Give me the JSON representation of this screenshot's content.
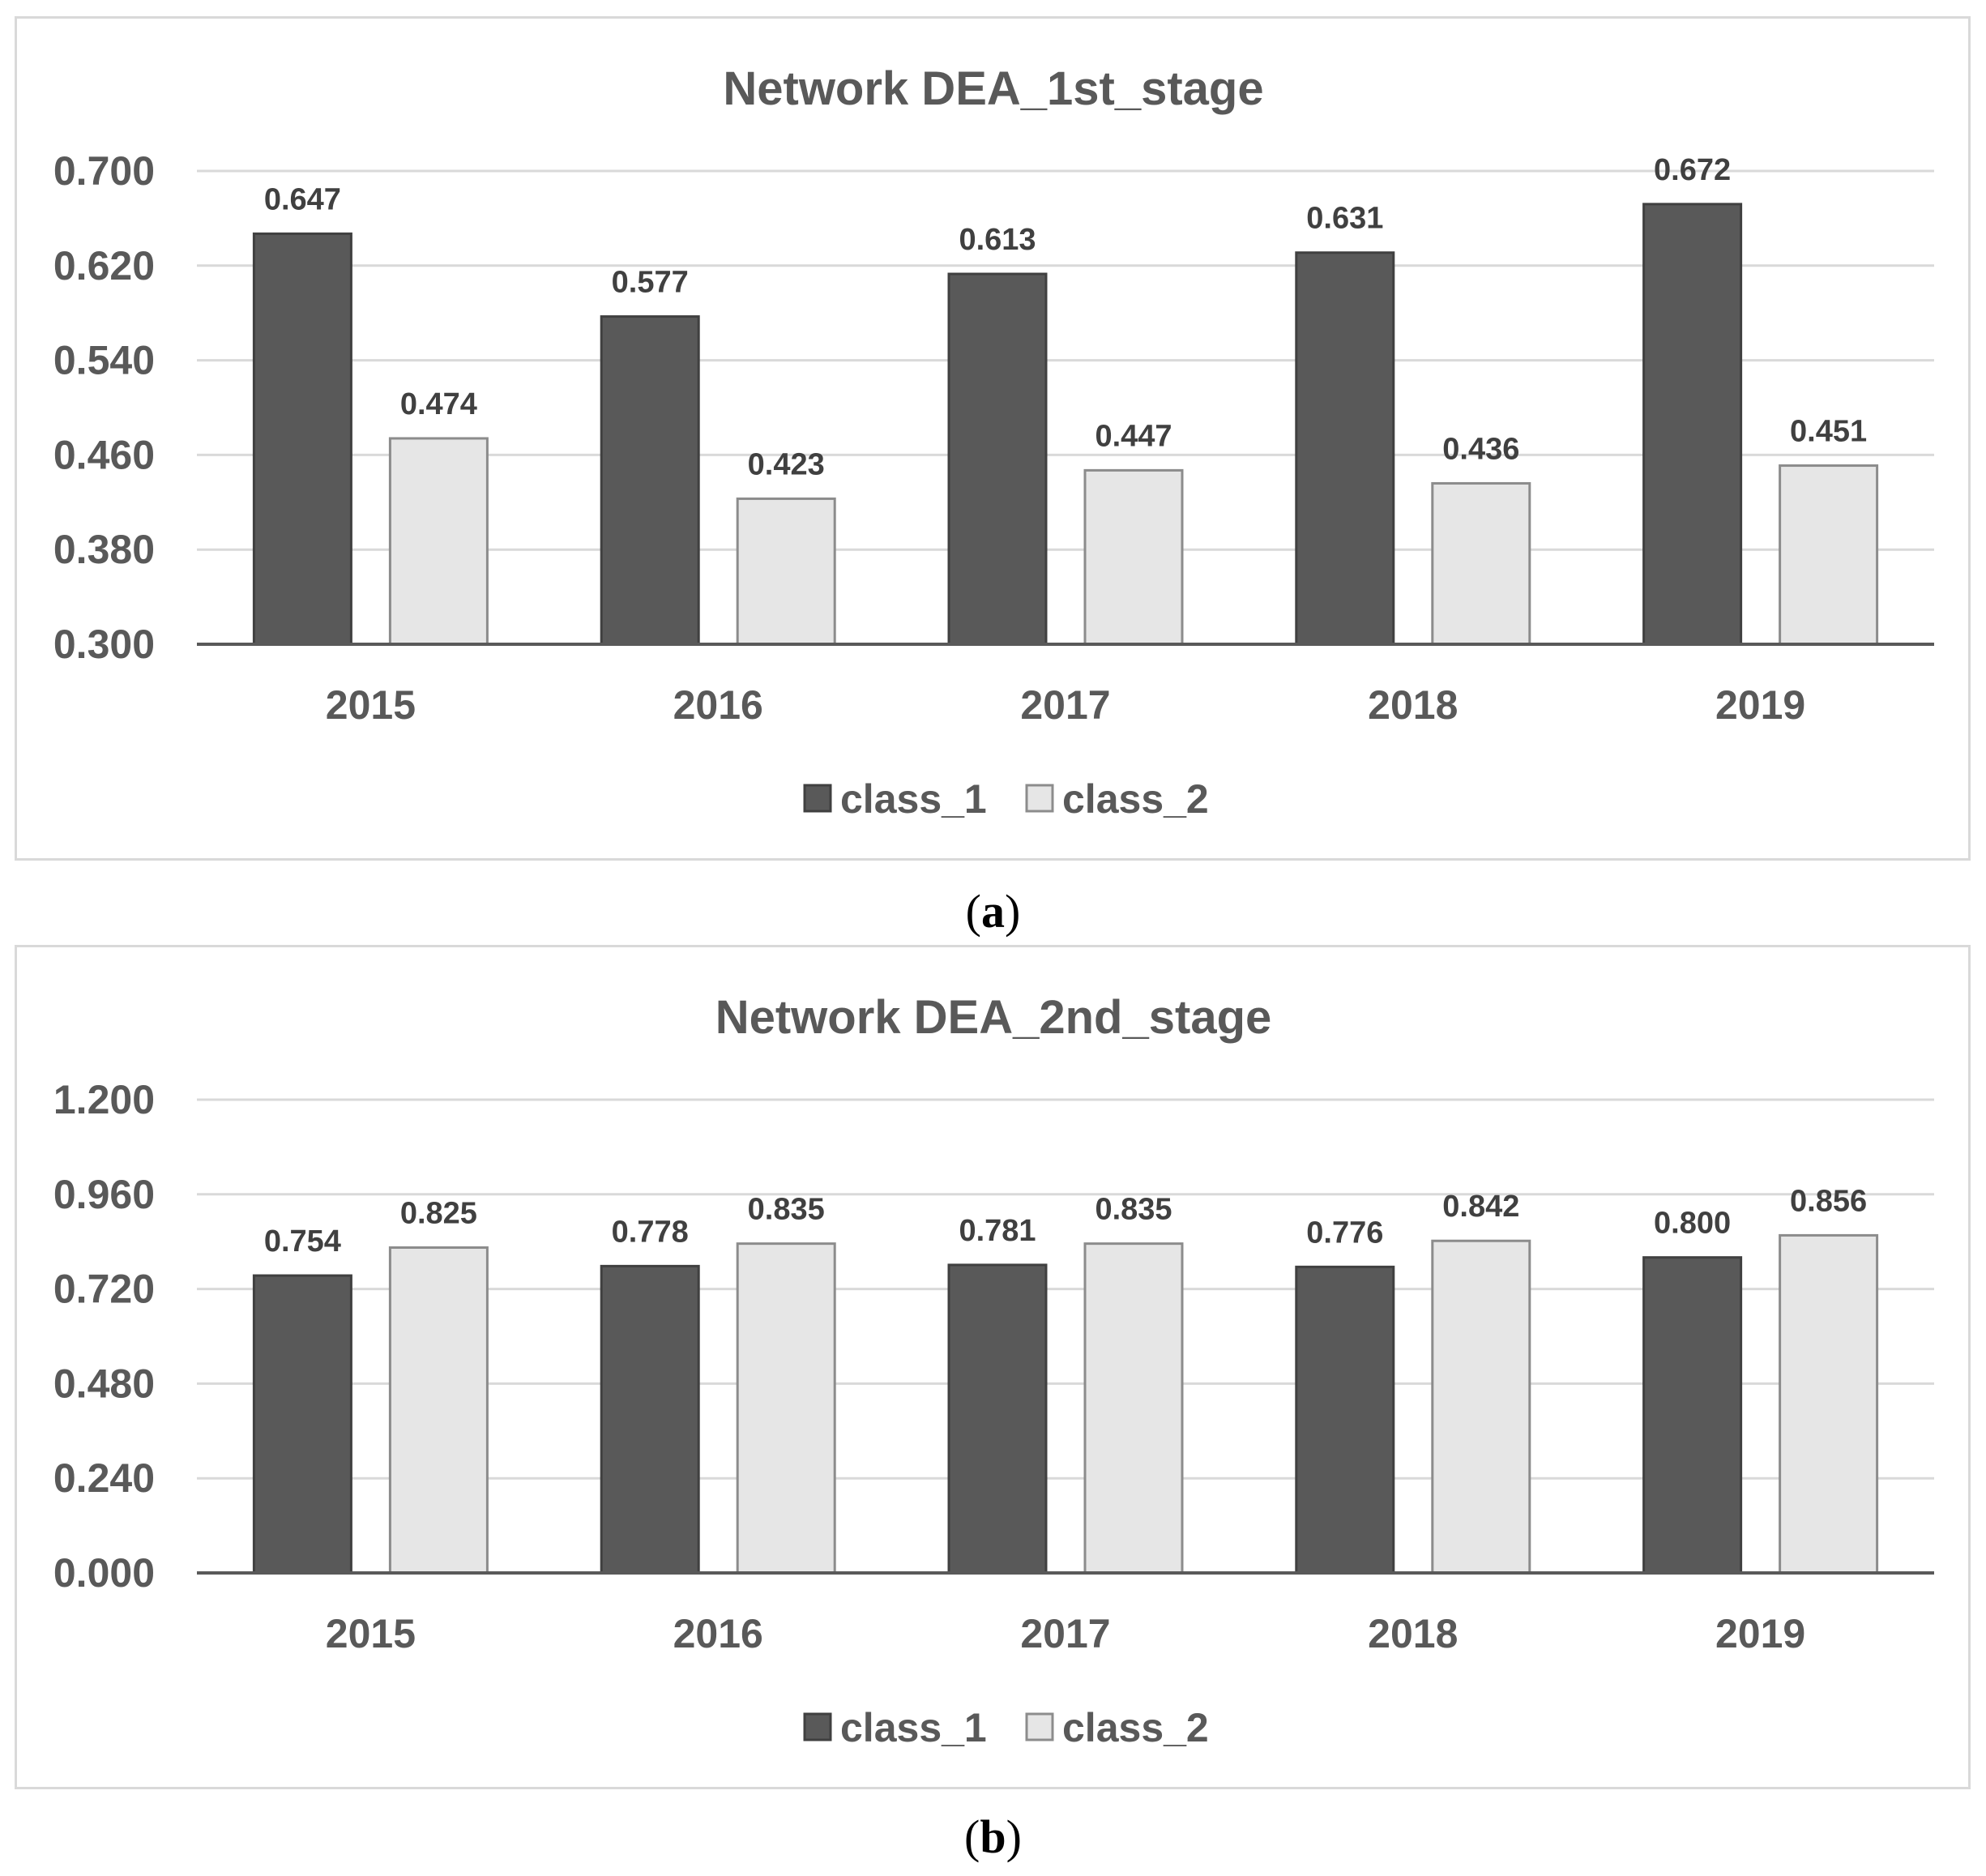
{
  "chart_data": [
    {
      "type": "bar",
      "title": "Network DEA_1st_stage",
      "categories": [
        "2015",
        "2016",
        "2017",
        "2018",
        "2019"
      ],
      "series": [
        {
          "name": "class_1",
          "values": [
            0.647,
            0.577,
            0.613,
            0.631,
            0.672
          ],
          "labels": [
            "0.647",
            "0.577",
            "0.613",
            "0.631",
            "0.672"
          ]
        },
        {
          "name": "class_2",
          "values": [
            0.474,
            0.423,
            0.447,
            0.436,
            0.451
          ],
          "labels": [
            "0.474",
            "0.423",
            "0.447",
            "0.436",
            "0.451"
          ]
        }
      ],
      "ylim": [
        0.3,
        0.7
      ],
      "yticks": [
        "0.300",
        "0.380",
        "0.460",
        "0.540",
        "0.620",
        "0.700"
      ],
      "ytick_values": [
        0.3,
        0.38,
        0.46,
        0.54,
        0.62,
        0.7
      ],
      "xlabel": "",
      "ylabel": "",
      "grid": true,
      "legend_position": "bottom-center",
      "colors": {
        "class_1": "#595959",
        "class_2": "#e6e6e6"
      }
    },
    {
      "type": "bar",
      "title": "Network DEA_2nd_stage",
      "categories": [
        "2015",
        "2016",
        "2017",
        "2018",
        "2019"
      ],
      "series": [
        {
          "name": "class_1",
          "values": [
            0.754,
            0.778,
            0.781,
            0.776,
            0.8
          ],
          "labels": [
            "0.754",
            "0.778",
            "0.781",
            "0.776",
            "0.800"
          ]
        },
        {
          "name": "class_2",
          "values": [
            0.825,
            0.835,
            0.835,
            0.842,
            0.856
          ],
          "labels": [
            "0.825",
            "0.835",
            "0.835",
            "0.842",
            "0.856"
          ]
        }
      ],
      "ylim": [
        0,
        1.2
      ],
      "yticks": [
        "0.000",
        "0.240",
        "0.480",
        "0.720",
        "0.960",
        "1.200"
      ],
      "ytick_values": [
        0,
        0.24,
        0.48,
        0.72,
        0.96,
        1.2
      ],
      "xlabel": "",
      "ylabel": "",
      "grid": true,
      "legend_position": "bottom-center",
      "colors": {
        "class_1": "#595959",
        "class_2": "#e6e6e6"
      }
    }
  ],
  "captions": {
    "a": "a",
    "b": "b"
  }
}
